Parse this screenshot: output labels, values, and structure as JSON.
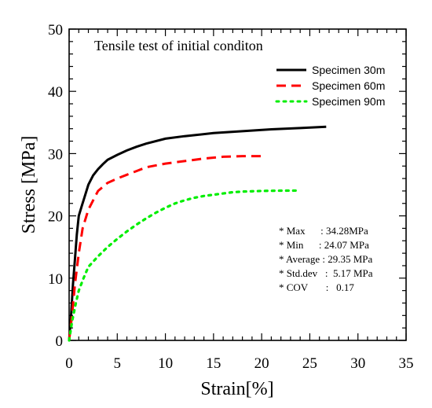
{
  "chart_data": {
    "type": "line",
    "title": "Tensile test of initial conditon",
    "xlabel": "Strain[%]",
    "ylabel": "Stress [MPa]",
    "xlim": [
      0,
      35
    ],
    "ylim": [
      0,
      50
    ],
    "xticks": [
      "0",
      "5",
      "10",
      "15",
      "20",
      "25",
      "30",
      "35"
    ],
    "yticks": [
      "0",
      "10",
      "20",
      "30",
      "40",
      "50"
    ],
    "grid": false,
    "legend_position": "top-right",
    "series": [
      {
        "name": "Specimen 30m",
        "color": "#000000",
        "style": "solid",
        "points": [
          [
            0,
            0
          ],
          [
            0.2,
            4
          ],
          [
            0.4,
            9
          ],
          [
            0.6,
            13
          ],
          [
            0.8,
            17
          ],
          [
            1.0,
            20
          ],
          [
            1.3,
            21.5
          ],
          [
            1.6,
            23
          ],
          [
            2.0,
            25
          ],
          [
            2.5,
            26.5
          ],
          [
            3.0,
            27.5
          ],
          [
            3.5,
            28.3
          ],
          [
            4.0,
            29
          ],
          [
            5.0,
            29.8
          ],
          [
            6.0,
            30.5
          ],
          [
            7.0,
            31.1
          ],
          [
            8.0,
            31.6
          ],
          [
            10.0,
            32.4
          ],
          [
            12.0,
            32.8
          ],
          [
            15.0,
            33.3
          ],
          [
            18.0,
            33.6
          ],
          [
            21.0,
            33.9
          ],
          [
            24.0,
            34.1
          ],
          [
            26.7,
            34.3
          ]
        ]
      },
      {
        "name": "Specimen 60m",
        "color": "#ff0000",
        "style": "dashed",
        "points": [
          [
            0,
            0
          ],
          [
            0.3,
            4
          ],
          [
            0.6,
            9
          ],
          [
            1.0,
            14
          ],
          [
            1.4,
            18
          ],
          [
            2.0,
            21
          ],
          [
            2.5,
            22.5
          ],
          [
            3.0,
            24
          ],
          [
            4.0,
            25.3
          ],
          [
            5.0,
            26
          ],
          [
            6.0,
            26.6
          ],
          [
            7.0,
            27.2
          ],
          [
            8.0,
            27.8
          ],
          [
            10.0,
            28.4
          ],
          [
            12.0,
            28.8
          ],
          [
            14.0,
            29.2
          ],
          [
            16.0,
            29.5
          ],
          [
            18.0,
            29.6
          ],
          [
            20.0,
            29.6
          ]
        ]
      },
      {
        "name": "Specimen 90m",
        "color": "#00ee00",
        "style": "dotted",
        "points": [
          [
            0,
            0
          ],
          [
            0.3,
            3
          ],
          [
            0.7,
            6
          ],
          [
            1.0,
            8
          ],
          [
            1.5,
            10
          ],
          [
            2.0,
            11.8
          ],
          [
            3.0,
            13.5
          ],
          [
            4.0,
            15
          ],
          [
            5.0,
            16.3
          ],
          [
            6.0,
            17.5
          ],
          [
            7.0,
            18.6
          ],
          [
            8.0,
            19.6
          ],
          [
            9.0,
            20.5
          ],
          [
            10.0,
            21.3
          ],
          [
            11.0,
            22
          ],
          [
            12.0,
            22.5
          ],
          [
            13.0,
            22.9
          ],
          [
            14.0,
            23.2
          ],
          [
            15.0,
            23.4
          ],
          [
            16.0,
            23.6
          ],
          [
            17.0,
            23.8
          ],
          [
            18.0,
            23.9
          ],
          [
            20.0,
            24
          ],
          [
            22.0,
            24.05
          ],
          [
            24.0,
            24.07
          ]
        ]
      }
    ],
    "annotations": [
      "* Max      : 34.28MPa",
      "* Min      : 24.07 MPa",
      "* Average : 29.35 MPa",
      "* Std.dev   :  5.17 MPa",
      "* COV       :   0.17"
    ]
  }
}
